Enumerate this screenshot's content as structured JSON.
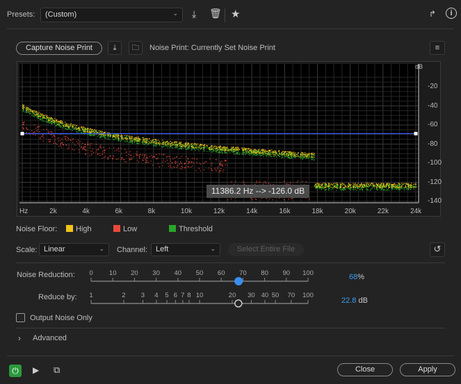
{
  "presets": {
    "label": "Presets:",
    "value": "(Custom)"
  },
  "noise_print": {
    "capture_label": "Capture Noise Print",
    "status": "Noise Print: Currently Set Noise Print"
  },
  "graph": {
    "db_unit": "dB",
    "db_ticks": [
      "-20",
      "-40",
      "-60",
      "-80",
      "-100",
      "-120",
      "-140"
    ],
    "freq_ticks": [
      "Hz",
      "2k",
      "4k",
      "6k",
      "8k",
      "10k",
      "12k",
      "14k",
      "16k",
      "18k",
      "20k",
      "22k",
      "24k"
    ],
    "threshold_db": -69,
    "tooltip": "11386.2 Hz --> -126.0 dB",
    "colors": {
      "high": "#f0c419",
      "low": "#e84a3a",
      "threshold": "#2aa52a",
      "line": "#4060ff"
    }
  },
  "legend": {
    "label": "Noise Floor:",
    "items": [
      "High",
      "Low",
      "Threshold"
    ]
  },
  "scale": {
    "label": "Scale:",
    "value": "Linear"
  },
  "channel": {
    "label": "Channel:",
    "value": "Left"
  },
  "select_entire_file": "Select Entire File",
  "noise_reduction": {
    "label": "Noise Reduction:",
    "ticks": [
      "0",
      "10",
      "20",
      "30",
      "40",
      "50",
      "60",
      "70",
      "80",
      "90",
      "100"
    ],
    "value": "68",
    "unit": "%",
    "percent": 68
  },
  "reduce_by": {
    "label": "Reduce by:",
    "ticks": [
      "1",
      "2",
      "3",
      "4",
      "5",
      "6",
      "7",
      "8",
      "10",
      "20",
      "30",
      "40",
      "50",
      "70",
      "100"
    ],
    "value": "22.8",
    "unit": "dB"
  },
  "output_noise_only": "Output Noise Only",
  "advanced": "Advanced",
  "buttons": {
    "close": "Close",
    "apply": "Apply"
  }
}
